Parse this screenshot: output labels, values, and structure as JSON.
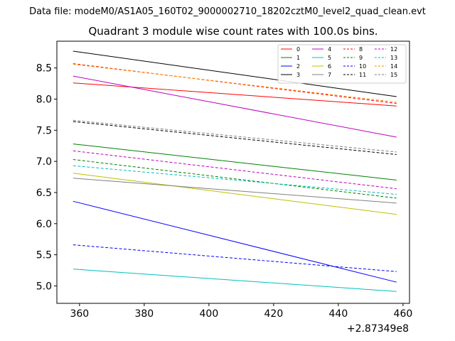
{
  "chart_data": {
    "type": "line",
    "suptitle": "Data file: modeM0/AS1A05_160T02_9000002710_18202cztM0_level2_quad_clean.evt",
    "title": "Quadrant 3 module wise count rates with 100.0s bins.",
    "xlabel": "",
    "ylabel": "",
    "x_offset_label": "+2.87349e8",
    "xlim": [
      353,
      462
    ],
    "ylim": [
      4.72,
      8.93
    ],
    "xticks": [
      360,
      380,
      400,
      420,
      440,
      460
    ],
    "yticks": [
      5.0,
      5.5,
      6.0,
      6.5,
      7.0,
      7.5,
      8.0,
      8.5
    ],
    "ytick_labels": [
      "5.0",
      "5.5",
      "6.0",
      "6.5",
      "7.0",
      "7.5",
      "8.0",
      "8.5"
    ],
    "x": [
      358,
      458
    ],
    "series": [
      {
        "name": "0",
        "color": "#ff0000",
        "dash": false,
        "values": [
          8.26,
          7.89
        ]
      },
      {
        "name": "1",
        "color": "#008000",
        "dash": false,
        "values": [
          7.28,
          6.7
        ]
      },
      {
        "name": "2",
        "color": "#0000ff",
        "dash": false,
        "values": [
          6.36,
          5.06
        ]
      },
      {
        "name": "3",
        "color": "#000000",
        "dash": false,
        "values": [
          8.77,
          8.04
        ]
      },
      {
        "name": "4",
        "color": "#bf00bf",
        "dash": false,
        "values": [
          8.37,
          7.39
        ]
      },
      {
        "name": "5",
        "color": "#00bfbf",
        "dash": false,
        "values": [
          5.27,
          4.91
        ]
      },
      {
        "name": "6",
        "color": "#bfbf00",
        "dash": false,
        "values": [
          6.81,
          6.15
        ]
      },
      {
        "name": "7",
        "color": "#808080",
        "dash": false,
        "values": [
          6.73,
          6.33
        ]
      },
      {
        "name": "8",
        "color": "#ff0000",
        "dash": true,
        "values": [
          8.57,
          7.93
        ]
      },
      {
        "name": "9",
        "color": "#008000",
        "dash": true,
        "values": [
          7.03,
          6.41
        ]
      },
      {
        "name": "10",
        "color": "#0000ff",
        "dash": true,
        "values": [
          5.66,
          5.23
        ]
      },
      {
        "name": "11",
        "color": "#000000",
        "dash": true,
        "values": [
          7.64,
          7.11
        ]
      },
      {
        "name": "12",
        "color": "#bf00bf",
        "dash": true,
        "values": [
          7.17,
          6.56
        ]
      },
      {
        "name": "13",
        "color": "#00bfbf",
        "dash": true,
        "values": [
          6.93,
          6.47
        ]
      },
      {
        "name": "14",
        "color": "#ff8c00",
        "dash": true,
        "values": [
          8.56,
          7.95
        ]
      },
      {
        "name": "15",
        "color": "#808080",
        "dash": true,
        "values": [
          7.66,
          7.15
        ]
      }
    ],
    "legend": {
      "position": "top-right",
      "columns": 4
    }
  }
}
